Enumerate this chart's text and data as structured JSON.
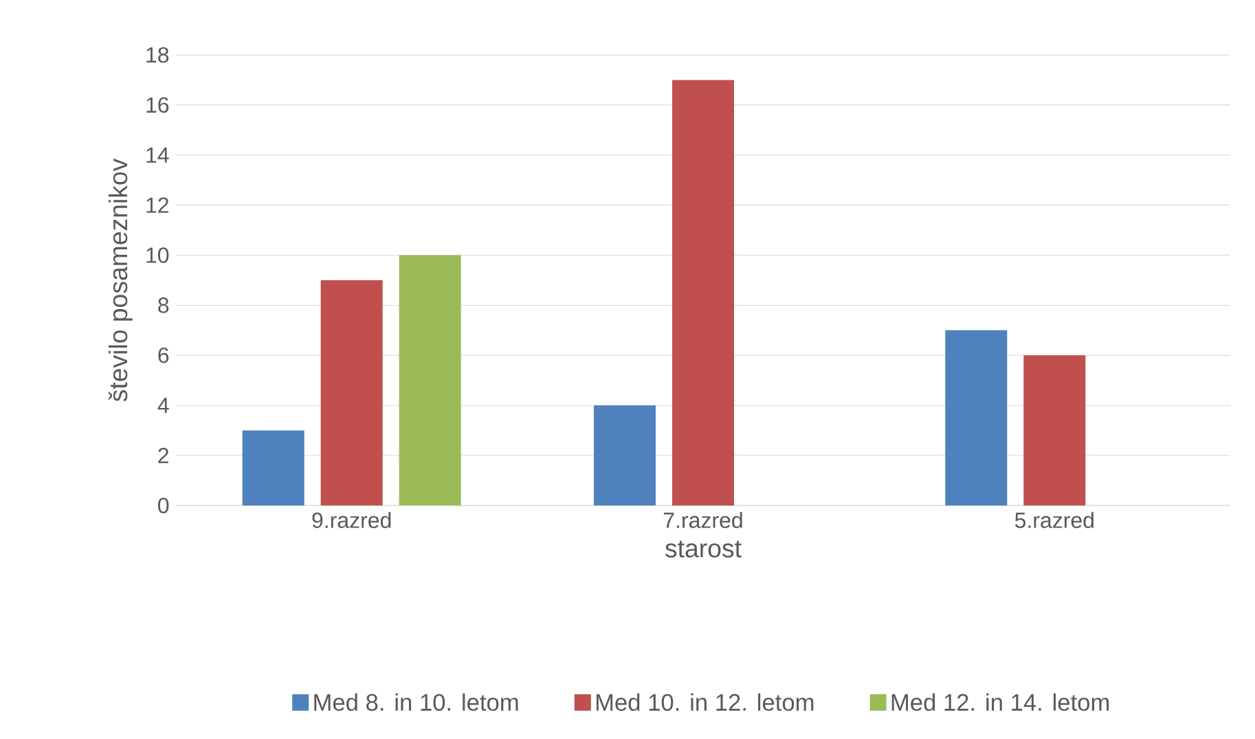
{
  "chart_data": {
    "type": "bar",
    "xlabel": "starost",
    "ylabel": "število posameznikov",
    "categories": [
      "9.razred",
      "7.razred",
      "5.razred"
    ],
    "series": [
      {
        "name": "Med 8. in 10. letom",
        "color": "#4f81bd",
        "values": [
          3,
          4,
          7
        ]
      },
      {
        "name": "Med 10. in 12. letom",
        "color": "#c0504d",
        "values": [
          9,
          17,
          6
        ]
      },
      {
        "name": "Med 12. in 14. letom",
        "color": "#9bbb59",
        "values": [
          10,
          null,
          null
        ]
      }
    ],
    "ylim": [
      0,
      18
    ],
    "yticks": [
      0,
      2,
      4,
      6,
      8,
      10,
      12,
      14,
      16,
      18
    ],
    "grid": "y",
    "legend": "bottom"
  }
}
